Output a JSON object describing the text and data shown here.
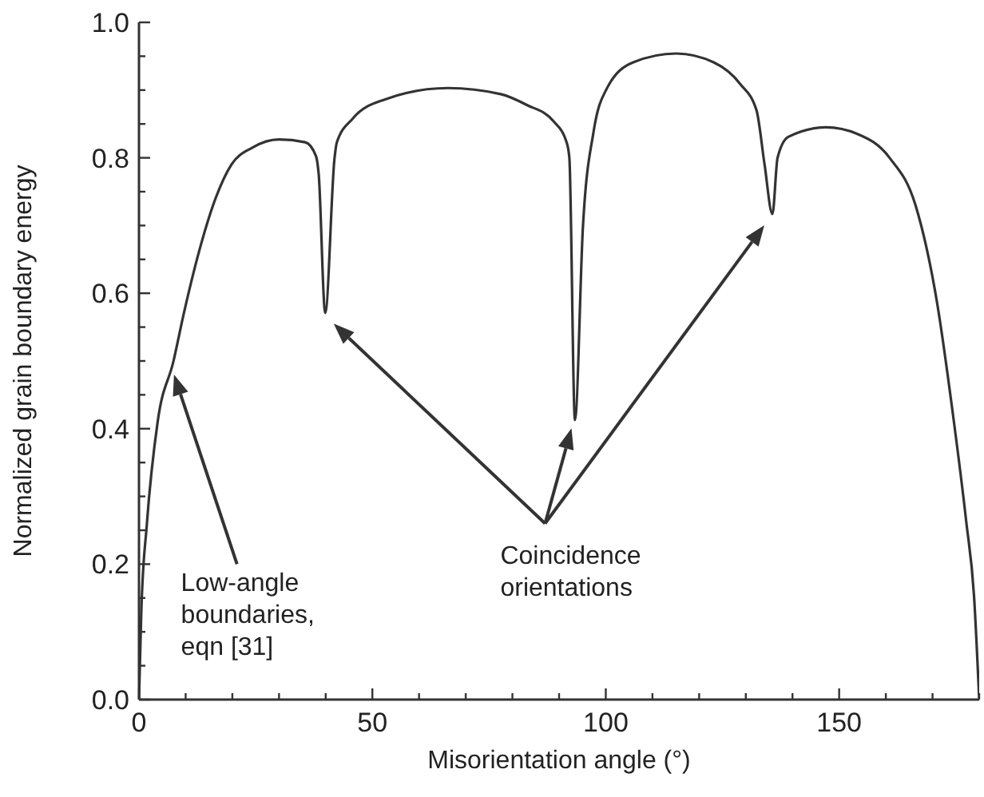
{
  "chart_data": {
    "type": "line",
    "xlabel": "Misorientation angle (°)",
    "ylabel": "Normalized grain boundary energy",
    "xlim": [
      0,
      180
    ],
    "ylim": [
      0,
      1
    ],
    "xticks": [
      0,
      {
        "value": 10,
        "label": null
      },
      {
        "value": 20,
        "label": null
      },
      {
        "value": 30,
        "label": null
      },
      {
        "value": 40,
        "label": null
      },
      50,
      {
        "value": 60,
        "label": null
      },
      {
        "value": 70,
        "label": null
      },
      {
        "value": 80,
        "label": null
      },
      {
        "value": 90,
        "label": null
      },
      100,
      {
        "value": 110,
        "label": null
      },
      {
        "value": 120,
        "label": null
      },
      {
        "value": 130,
        "label": null
      },
      {
        "value": 140,
        "label": null
      },
      150,
      {
        "value": 160,
        "label": null
      },
      {
        "value": 170,
        "label": null
      },
      {
        "value": 180,
        "label": null
      }
    ],
    "yticks": [
      {
        "value": 0,
        "label": "0.0"
      },
      {
        "value": 0.05,
        "label": null
      },
      {
        "value": 0.1,
        "label": null
      },
      {
        "value": 0.15,
        "label": null
      },
      {
        "value": 0.2,
        "label": "0.2"
      },
      {
        "value": 0.25,
        "label": null
      },
      {
        "value": 0.3,
        "label": null
      },
      {
        "value": 0.35,
        "label": null
      },
      {
        "value": 0.4,
        "label": "0.4"
      },
      {
        "value": 0.45,
        "label": null
      },
      {
        "value": 0.5,
        "label": null
      },
      {
        "value": 0.55,
        "label": null
      },
      {
        "value": 0.6,
        "label": "0.6"
      },
      {
        "value": 0.65,
        "label": null
      },
      {
        "value": 0.7,
        "label": null
      },
      {
        "value": 0.75,
        "label": null
      },
      {
        "value": 0.8,
        "label": "0.8"
      },
      {
        "value": 0.85,
        "label": null
      },
      {
        "value": 0.9,
        "label": null
      },
      {
        "value": 0.95,
        "label": null
      },
      {
        "value": 1,
        "label": "1.0"
      }
    ],
    "marker": "none",
    "line_style": "solid",
    "series": [
      {
        "color": "#333333",
        "x": [
          0,
          0.5,
          1.7,
          4,
          7.4,
          9.6,
          13,
          16.4,
          19.8,
          24.3,
          30,
          35.6,
          37.9,
          38.5,
          39.9,
          41.9,
          42.4,
          45.8,
          52.6,
          66.2,
          77.5,
          83.1,
          88.8,
          91.6,
          92.2,
          93.4,
          95.1,
          97.4,
          100.2,
          105.9,
          115.1,
          123.1,
          128.8,
          132.3,
          134,
          135.7,
          136.8,
          139.1,
          147.1,
          154,
          160.8,
          166.4,
          171,
          174.3,
          177.2,
          178.9,
          180
        ],
        "values": [
          0,
          0.13,
          0.26,
          0.41,
          0.5,
          0.57,
          0.665,
          0.74,
          0.79,
          0.815,
          0.827,
          0.823,
          0.803,
          0.776,
          0.571,
          0.8,
          0.823,
          0.858,
          0.886,
          0.903,
          0.894,
          0.878,
          0.854,
          0.823,
          0.8,
          0.413,
          0.697,
          0.839,
          0.902,
          0.941,
          0.954,
          0.941,
          0.909,
          0.87,
          0.791,
          0.717,
          0.8,
          0.831,
          0.845,
          0.835,
          0.8,
          0.729,
          0.585,
          0.425,
          0.264,
          0.152,
          0
        ]
      }
    ],
    "annotations": [
      "Low-angle\nboundaries,\neqn [31]",
      "Coincidence\norientations"
    ]
  }
}
